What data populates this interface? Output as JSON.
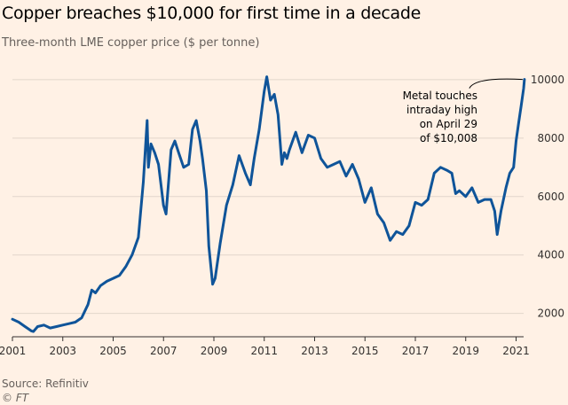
{
  "header": {
    "title": "Copper breaches $10,000 for first time in a decade",
    "subtitle": "Three-month LME copper price ($ per tonne)"
  },
  "footer": {
    "source": "Source: Refinitiv",
    "credit": "© FT"
  },
  "colors": {
    "background": "#fff1e5",
    "line": "#0f5499",
    "grid": "#e2d6cb",
    "axis": "#33302e"
  },
  "chart_data": {
    "type": "line",
    "title": "Copper breaches $10,000 for first time in a decade",
    "subtitle": "Three-month LME copper price ($ per tonne)",
    "xlabel": "",
    "ylabel": "",
    "xlim": [
      2001,
      2021.3
    ],
    "ylim": [
      1200,
      10300
    ],
    "grid": true,
    "y_ticks": [
      2000,
      4000,
      6000,
      8000,
      10000
    ],
    "y_tick_labels": [
      "2000",
      "4000",
      "6000",
      "8000",
      "10000"
    ],
    "x_ticks": [
      2001,
      2003,
      2005,
      2007,
      2009,
      2011,
      2013,
      2015,
      2017,
      2019,
      2021
    ],
    "x_tick_labels": [
      "2001",
      "2003",
      "2005",
      "2007",
      "2009",
      "2011",
      "2013",
      "2015",
      "2017",
      "2019",
      "2021"
    ],
    "annotation": {
      "lines": [
        "Metal touches",
        "intraday high",
        "on April 29",
        "of $10,008"
      ],
      "x": 2021.33,
      "y": 10008
    },
    "series": [
      {
        "name": "Three-month LME copper price",
        "x": [
          2001.0,
          2001.25,
          2001.5,
          2001.75,
          2001.83,
          2002.0,
          2002.25,
          2002.5,
          2002.75,
          2003.0,
          2003.25,
          2003.5,
          2003.75,
          2004.0,
          2004.15,
          2004.3,
          2004.5,
          2004.75,
          2005.0,
          2005.25,
          2005.5,
          2005.75,
          2006.0,
          2006.2,
          2006.35,
          2006.4,
          2006.5,
          2006.65,
          2006.8,
          2007.0,
          2007.1,
          2007.3,
          2007.45,
          2007.6,
          2007.8,
          2008.0,
          2008.15,
          2008.3,
          2008.45,
          2008.55,
          2008.7,
          2008.8,
          2008.95,
          2009.05,
          2009.25,
          2009.5,
          2009.75,
          2010.0,
          2010.25,
          2010.45,
          2010.6,
          2010.8,
          2011.0,
          2011.1,
          2011.25,
          2011.4,
          2011.55,
          2011.7,
          2011.8,
          2011.9,
          2012.0,
          2012.25,
          2012.5,
          2012.75,
          2013.0,
          2013.25,
          2013.5,
          2013.75,
          2014.0,
          2014.25,
          2014.5,
          2014.75,
          2015.0,
          2015.25,
          2015.5,
          2015.75,
          2016.0,
          2016.25,
          2016.5,
          2016.75,
          2017.0,
          2017.25,
          2017.5,
          2017.75,
          2018.0,
          2018.25,
          2018.45,
          2018.6,
          2018.75,
          2019.0,
          2019.25,
          2019.5,
          2019.75,
          2020.0,
          2020.15,
          2020.25,
          2020.4,
          2020.6,
          2020.75,
          2020.9,
          2021.0,
          2021.1,
          2021.2,
          2021.3,
          2021.33
        ],
        "values": [
          1800,
          1700,
          1550,
          1400,
          1380,
          1550,
          1600,
          1500,
          1550,
          1600,
          1650,
          1700,
          1850,
          2300,
          2800,
          2700,
          2950,
          3100,
          3200,
          3300,
          3600,
          4000,
          4600,
          6500,
          8600,
          7000,
          7800,
          7500,
          7100,
          5700,
          5400,
          7600,
          7900,
          7500,
          7000,
          7100,
          8300,
          8600,
          7900,
          7300,
          6200,
          4300,
          3000,
          3200,
          4400,
          5700,
          6400,
          7400,
          6800,
          6400,
          7300,
          8300,
          9600,
          10100,
          9300,
          9500,
          8800,
          7100,
          7500,
          7300,
          7600,
          8200,
          7500,
          8100,
          8000,
          7300,
          7000,
          7100,
          7200,
          6700,
          7100,
          6600,
          5800,
          6300,
          5400,
          5100,
          4500,
          4800,
          4700,
          5000,
          5800,
          5700,
          5900,
          6800,
          7000,
          6900,
          6800,
          6100,
          6200,
          6000,
          6300,
          5800,
          5900,
          5900,
          5500,
          4700,
          5500,
          6300,
          6800,
          7000,
          7900,
          8500,
          9100,
          9700,
          10008
        ]
      }
    ]
  }
}
